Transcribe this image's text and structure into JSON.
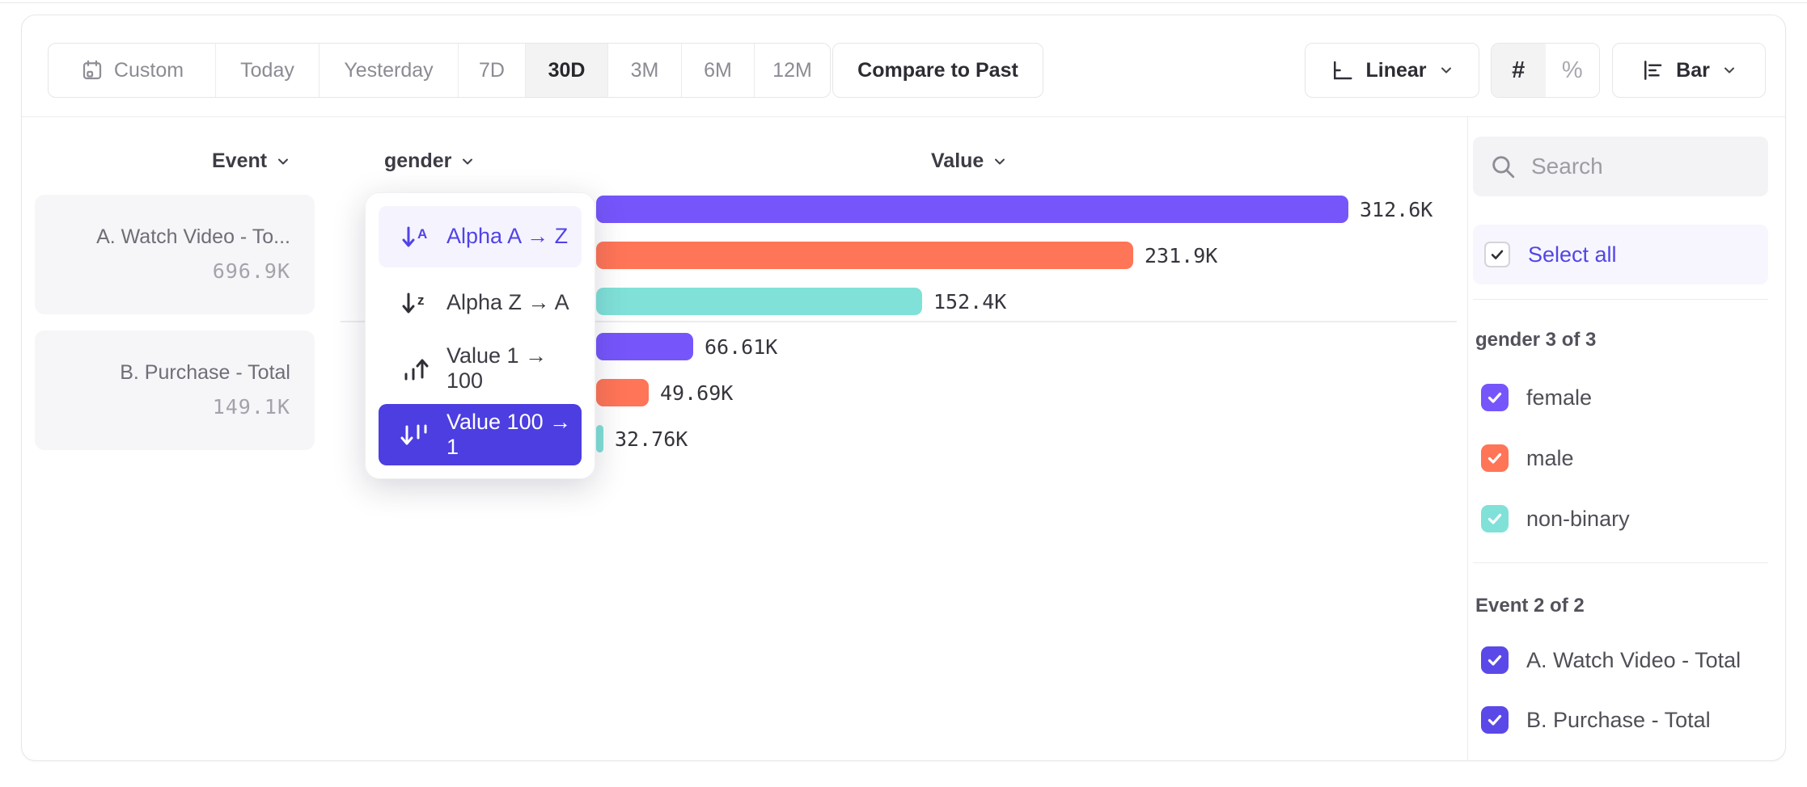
{
  "toolbar": {
    "date_ranges": [
      "Custom",
      "Today",
      "Yesterday",
      "7D",
      "30D",
      "3M",
      "6M",
      "12M"
    ],
    "selected_range": "30D",
    "compare_button": "Compare to Past",
    "scale_selector": "Linear",
    "number_format": "#",
    "percent_format": "%",
    "chart_type_selector": "Bar"
  },
  "chart_header": {
    "event": "Event",
    "breakdown": "gender",
    "value": "Value"
  },
  "event_cards": [
    {
      "title": "A. Watch Video - To...",
      "value": "696.9K"
    },
    {
      "title": "B. Purchase - Total",
      "value": "149.1K"
    }
  ],
  "sort_menu": {
    "items": [
      "Alpha A → Z",
      "Alpha Z → A",
      "Value 1 → 100",
      "Value 100 → 1"
    ],
    "highlighted": "Alpha A → Z",
    "selected": "Value 100 → 1"
  },
  "chart_data": {
    "type": "bar",
    "orientation": "horizontal",
    "title": "",
    "value_axis_label": "Value",
    "breakdown_property": "gender",
    "xlim": [
      30000,
      312600
    ],
    "colors": {
      "female": "#7656FB",
      "male": "#FF7557",
      "non-binary": "#80E1D9"
    },
    "groups": [
      {
        "event": "A. Watch Video - Total",
        "total_label": "696.9K",
        "bars": [
          {
            "category": "female",
            "value": 312600,
            "label": "312.6K"
          },
          {
            "category": "male",
            "value": 231900,
            "label": "231.9K"
          },
          {
            "category": "non-binary",
            "value": 152400,
            "label": "152.4K"
          }
        ]
      },
      {
        "event": "B. Purchase - Total",
        "total_label": "149.1K",
        "bars": [
          {
            "category": "female",
            "value": 66610,
            "label": "66.61K"
          },
          {
            "category": "male",
            "value": 49690,
            "label": "49.69K"
          },
          {
            "category": "non-binary",
            "value": 32760,
            "label": "32.76K"
          }
        ]
      }
    ]
  },
  "sidebar": {
    "search_placeholder": "Search",
    "select_all": "Select all",
    "gender_section": {
      "header": "gender 3 of 3",
      "options": [
        {
          "label": "female",
          "checked": true,
          "color": "#7656FB"
        },
        {
          "label": "male",
          "checked": true,
          "color": "#FF7557"
        },
        {
          "label": "non-binary",
          "checked": true,
          "color": "#80E1D9"
        }
      ]
    },
    "event_section": {
      "header": "Event 2 of 2",
      "options": [
        {
          "label": "A. Watch Video - Total",
          "checked": true,
          "color": "#5A49E8"
        },
        {
          "label": "B. Purchase - Total",
          "checked": true,
          "color": "#5A49E8"
        }
      ]
    }
  },
  "ui_colors": {
    "accent_purple": "#4C3EE0",
    "link_purple": "#5246E6",
    "bar_purple": "#7656FB",
    "bar_coral": "#FF7557",
    "bar_teal": "#80E1D9"
  }
}
